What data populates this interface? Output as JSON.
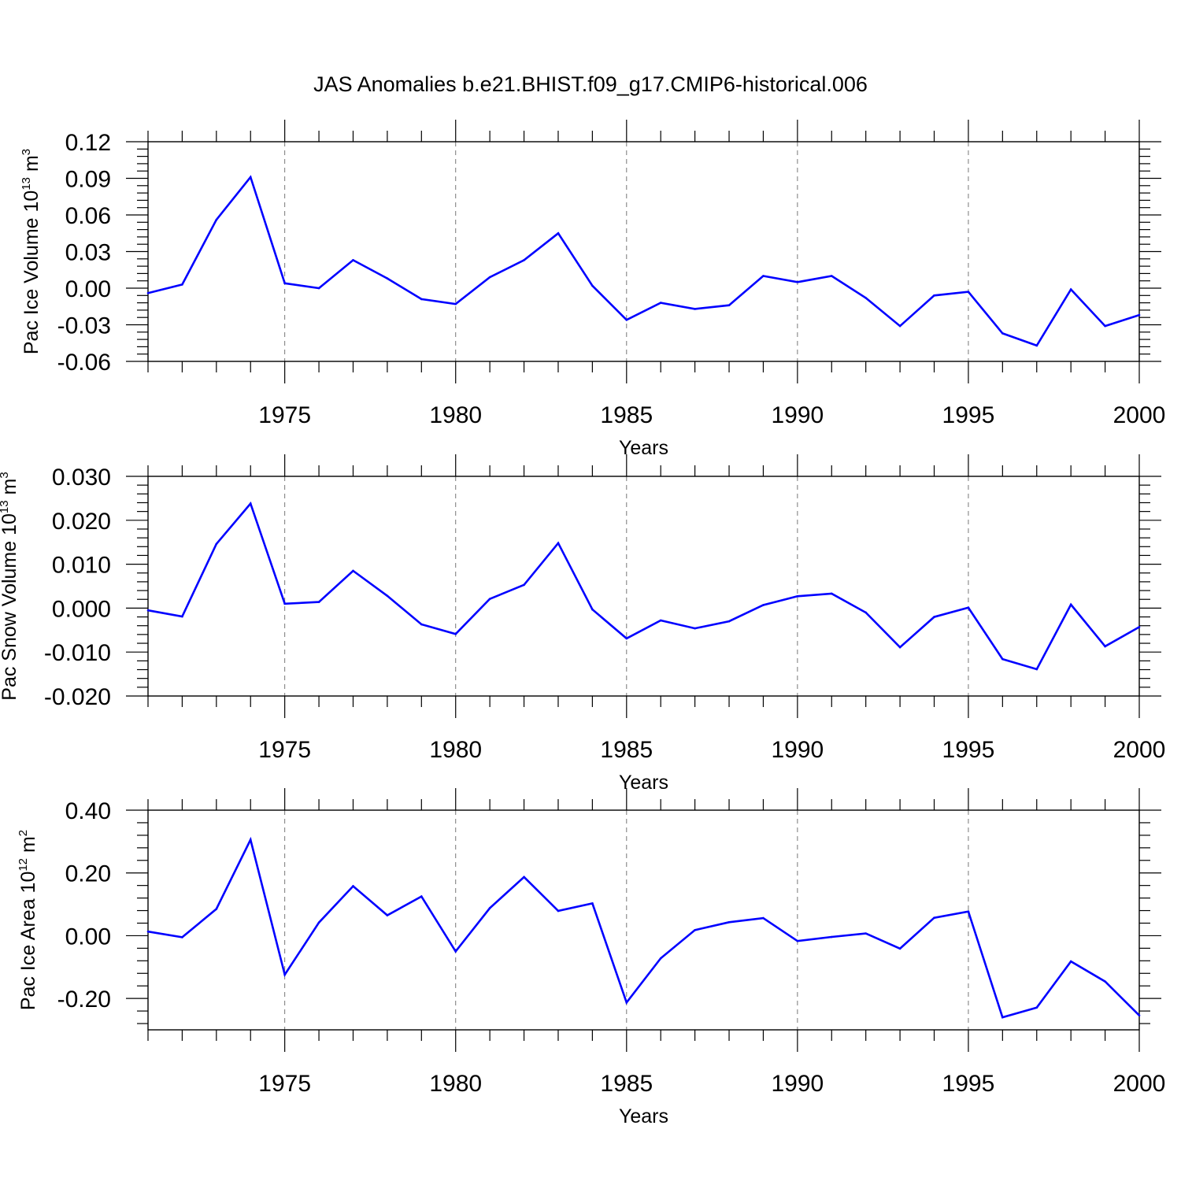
{
  "title": "JAS Anomalies b.e21.BHIST.f09_g17.CMIP6-historical.006",
  "series_color": "#0000ff",
  "chart_data": [
    {
      "type": "line",
      "ylabel_main": "Pac Ice Volume 10",
      "ylabel_exp": "13",
      "ylabel_unit": " m",
      "ylabel_unit_exp": "3",
      "xlabel": "Years",
      "xlim": [
        1971,
        2000
      ],
      "ylim": [
        -0.06,
        0.12
      ],
      "yticks": [
        "-0.06",
        "-0.03",
        "0.00",
        "0.03",
        "0.06",
        "0.09",
        "0.12"
      ],
      "xticks": [
        "1975",
        "1980",
        "1985",
        "1990",
        "1995",
        "2000"
      ],
      "grid": "dashed vertical at major x ticks",
      "x": [
        1971,
        1972,
        1973,
        1974,
        1975,
        1976,
        1977,
        1978,
        1979,
        1980,
        1981,
        1982,
        1983,
        1984,
        1985,
        1986,
        1987,
        1988,
        1989,
        1990,
        1991,
        1992,
        1993,
        1994,
        1995,
        1996,
        1997,
        1998,
        1999,
        2000
      ],
      "values": [
        -0.004,
        0.003,
        0.056,
        0.091,
        0.004,
        0.0,
        0.023,
        0.008,
        -0.009,
        -0.013,
        0.009,
        0.023,
        0.045,
        0.002,
        -0.026,
        -0.012,
        -0.017,
        -0.014,
        0.01,
        0.005,
        0.01,
        -0.008,
        -0.031,
        -0.006,
        -0.003,
        -0.037,
        -0.047,
        -0.001,
        -0.031,
        -0.022
      ]
    },
    {
      "type": "line",
      "ylabel_main": "Pac Snow Volume 10",
      "ylabel_exp": "13",
      "ylabel_unit": " m",
      "ylabel_unit_exp": "3",
      "xlabel": "Years",
      "xlim": [
        1971,
        2000
      ],
      "ylim": [
        -0.02,
        0.03
      ],
      "yticks": [
        "-0.020",
        "-0.010",
        "0.000",
        "0.010",
        "0.020",
        "0.030"
      ],
      "xticks": [
        "1975",
        "1980",
        "1985",
        "1990",
        "1995",
        "2000"
      ],
      "grid": "dashed vertical at major x ticks",
      "x": [
        1971,
        1972,
        1973,
        1974,
        1975,
        1976,
        1977,
        1978,
        1979,
        1980,
        1981,
        1982,
        1983,
        1984,
        1985,
        1986,
        1987,
        1988,
        1989,
        1990,
        1991,
        1992,
        1993,
        1994,
        1995,
        1996,
        1997,
        1998,
        1999,
        2000
      ],
      "values": [
        -0.0005,
        -0.0019,
        0.0146,
        0.0238,
        0.001,
        0.0014,
        0.0085,
        0.0028,
        -0.0037,
        -0.0059,
        0.0021,
        0.0053,
        0.0148,
        -0.0003,
        -0.0069,
        -0.0028,
        -0.0046,
        -0.003,
        0.0007,
        0.0027,
        0.0033,
        -0.001,
        -0.0089,
        -0.002,
        0.0001,
        -0.0116,
        -0.0139,
        0.0008,
        -0.0087,
        -0.0043
      ]
    },
    {
      "type": "line",
      "ylabel_main": "Pac Ice Area 10",
      "ylabel_exp": "12",
      "ylabel_unit": " m",
      "ylabel_unit_exp": "2",
      "xlabel": "Years",
      "xlim": [
        1971,
        2000
      ],
      "ylim": [
        -0.3,
        0.4
      ],
      "yticks": [
        "-0.20",
        "0.00",
        "0.20",
        "0.40"
      ],
      "ytick_values": [
        -0.2,
        0.0,
        0.2,
        0.4
      ],
      "xticks": [
        "1975",
        "1980",
        "1985",
        "1990",
        "1995",
        "2000"
      ],
      "grid": "dashed vertical at major x ticks",
      "x": [
        1971,
        1972,
        1973,
        1974,
        1975,
        1976,
        1977,
        1978,
        1979,
        1980,
        1981,
        1982,
        1983,
        1984,
        1985,
        1986,
        1987,
        1988,
        1989,
        1990,
        1991,
        1992,
        1993,
        1994,
        1995,
        1996,
        1997,
        1998,
        1999,
        2000
      ],
      "values": [
        0.013,
        -0.005,
        0.085,
        0.306,
        -0.124,
        0.042,
        0.158,
        0.065,
        0.125,
        -0.05,
        0.088,
        0.187,
        0.079,
        0.103,
        -0.213,
        -0.072,
        0.018,
        0.043,
        0.056,
        -0.017,
        -0.004,
        0.007,
        -0.041,
        0.057,
        0.077,
        -0.26,
        -0.229,
        -0.082,
        -0.146,
        -0.254
      ]
    }
  ]
}
